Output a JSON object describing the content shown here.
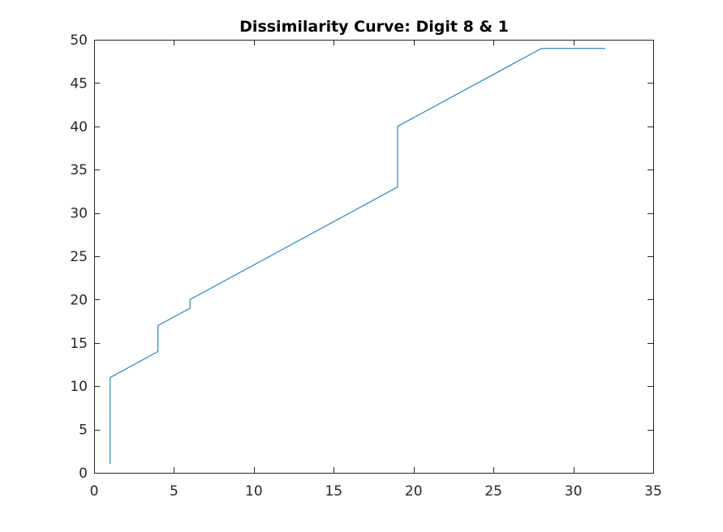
{
  "chart_data": {
    "type": "line",
    "title": "Dissimilarity Curve: Digit 8 & 1",
    "xlabel": "",
    "ylabel": "",
    "xlim": [
      0,
      35
    ],
    "ylim": [
      0,
      50
    ],
    "x_ticks": [
      0,
      5,
      10,
      15,
      20,
      25,
      30,
      35
    ],
    "y_ticks": [
      0,
      5,
      10,
      15,
      20,
      25,
      30,
      35,
      40,
      45,
      50
    ],
    "grid": false,
    "legend": "none",
    "series": [
      {
        "color": "#0072BD",
        "x": [
          1,
          1,
          4,
          4,
          6,
          6,
          19,
          19,
          28,
          32
        ],
        "y": [
          1,
          11,
          14,
          17,
          19,
          20,
          33,
          40,
          49,
          49
        ]
      }
    ]
  }
}
